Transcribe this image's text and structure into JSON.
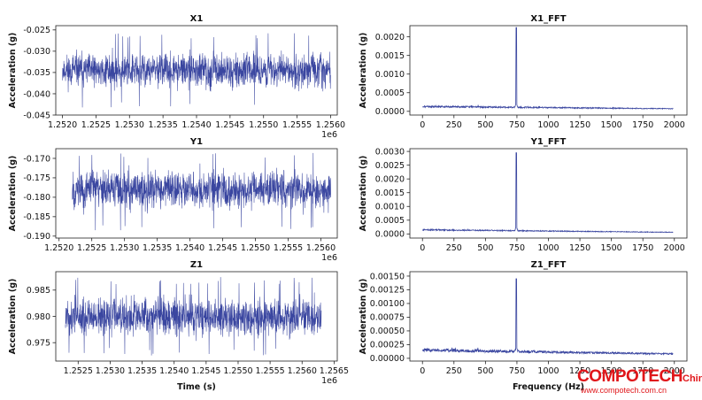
{
  "chart_data": [
    {
      "type": "line",
      "title": "X1",
      "ylabel": "Acceleration (g)",
      "xlabel": "",
      "xlim": [
        1251900,
        1256100
      ],
      "ylim": [
        -0.045,
        -0.024
      ],
      "xticks": [
        1252000,
        1252500,
        1253000,
        1253500,
        1254000,
        1254500,
        1255000,
        1255500,
        1256000
      ],
      "xtick_labels": [
        "1.2520",
        "1.2525",
        "1.2530",
        "1.2535",
        "1.2540",
        "1.2545",
        "1.2550",
        "1.2555",
        "1.2560"
      ],
      "yticks": [
        -0.045,
        -0.04,
        -0.035,
        -0.03,
        -0.025
      ],
      "ytick_labels": [
        "-0.045",
        "-0.040",
        "-0.035",
        "-0.030",
        "-0.025"
      ],
      "offset_text": "1e6",
      "signal": {
        "x_start": 1252000,
        "x_end": 1256000,
        "mean": -0.0345,
        "amplitude": 0.0045,
        "peak_min": -0.0435,
        "peak_max": -0.0255,
        "seed": 11
      },
      "color": "#3a46a0"
    },
    {
      "type": "line",
      "title": "X1_FFT",
      "ylabel": "Acceleration (g)",
      "xlabel": "",
      "xlim": [
        -100,
        2100
      ],
      "ylim": [
        -0.0001,
        0.0023
      ],
      "xticks": [
        0,
        250,
        500,
        750,
        1000,
        1250,
        1500,
        1750,
        2000
      ],
      "xtick_labels": [
        "0",
        "250",
        "500",
        "750",
        "1000",
        "1250",
        "1500",
        "1750",
        "2000"
      ],
      "yticks": [
        0,
        0.0005,
        0.001,
        0.0015,
        0.002
      ],
      "ytick_labels": [
        "0.0000",
        "0.0005",
        "0.0010",
        "0.0015",
        "0.0020"
      ],
      "spectrum": {
        "f_end": 1990,
        "base_start": 0.00013,
        "base_end": 7e-05,
        "noise": 4e-05,
        "peak_freq": 745,
        "peak_value": 0.00225,
        "seed": 21
      },
      "color": "#3a46a0"
    },
    {
      "type": "line",
      "title": "Y1",
      "ylabel": "Acceleration (g)",
      "xlabel": "",
      "xlim": [
        1251950,
        1256250
      ],
      "ylim": [
        -0.1905,
        -0.1675
      ],
      "xticks": [
        1252000,
        1252500,
        1253000,
        1253500,
        1254000,
        1254500,
        1255000,
        1255500,
        1256000
      ],
      "xtick_labels": [
        "1.2520",
        "1.2525",
        "1.2530",
        "1.2535",
        "1.2540",
        "1.2545",
        "1.2550",
        "1.2555",
        "1.2560"
      ],
      "yticks": [
        -0.19,
        -0.185,
        -0.18,
        -0.175,
        -0.17
      ],
      "ytick_labels": [
        "-0.190",
        "-0.185",
        "-0.180",
        "-0.175",
        "-0.170"
      ],
      "offset_text": "1e6",
      "signal": {
        "x_start": 1252200,
        "x_end": 1256150,
        "mean": -0.178,
        "amplitude": 0.0055,
        "peak_min": -0.1885,
        "peak_max": -0.1685,
        "seed": 33
      },
      "color": "#3a46a0"
    },
    {
      "type": "line",
      "title": "Y1_FFT",
      "ylabel": "Acceleration (g)",
      "xlabel": "",
      "xlim": [
        -100,
        2100
      ],
      "ylim": [
        -0.00015,
        0.0031
      ],
      "xticks": [
        0,
        250,
        500,
        750,
        1000,
        1250,
        1500,
        1750,
        2000
      ],
      "xtick_labels": [
        "0",
        "250",
        "500",
        "750",
        "1000",
        "1250",
        "1500",
        "1750",
        "2000"
      ],
      "yticks": [
        0,
        0.0005,
        0.001,
        0.0015,
        0.002,
        0.0025,
        0.003
      ],
      "ytick_labels": [
        "0.0000",
        "0.0005",
        "0.0010",
        "0.0015",
        "0.0020",
        "0.0025",
        "0.0030"
      ],
      "spectrum": {
        "f_end": 1990,
        "base_start": 0.00015,
        "base_end": 6e-05,
        "noise": 4e-05,
        "peak_freq": 745,
        "peak_value": 0.00295,
        "seed": 43
      },
      "color": "#3a46a0"
    },
    {
      "type": "line",
      "title": "Z1",
      "ylabel": "Acceleration (g)",
      "xlabel": "Time (s)",
      "xlim": [
        1252150,
        1256550
      ],
      "ylim": [
        0.9715,
        0.9885
      ],
      "xticks": [
        1252500,
        1253000,
        1253500,
        1254000,
        1254500,
        1255000,
        1255500,
        1256000,
        1256500
      ],
      "xtick_labels": [
        "1.2525",
        "1.2530",
        "1.2535",
        "1.2540",
        "1.2545",
        "1.2550",
        "1.2555",
        "1.2560",
        "1.2565"
      ],
      "yticks": [
        0.975,
        0.98,
        0.985
      ],
      "ytick_labels": [
        "0.975",
        "0.980",
        "0.985"
      ],
      "offset_text": "1e6",
      "signal": {
        "x_start": 1252300,
        "x_end": 1256300,
        "mean": 0.98,
        "amplitude": 0.004,
        "peak_min": 0.9725,
        "peak_max": 0.9875,
        "seed": 55
      },
      "color": "#3a46a0"
    },
    {
      "type": "line",
      "title": "Z1_FFT",
      "ylabel": "Acceleration (g)",
      "xlabel": "Frequency (Hz)",
      "xlim": [
        -100,
        2100
      ],
      "ylim": [
        -5e-05,
        0.00158
      ],
      "xticks": [
        0,
        250,
        500,
        750,
        1000,
        1250,
        1500,
        1750,
        2000
      ],
      "xtick_labels": [
        "0",
        "250",
        "500",
        "750",
        "1000",
        "1250",
        "1500",
        "1750",
        "2000"
      ],
      "yticks": [
        0,
        0.00025,
        0.0005,
        0.00075,
        0.001,
        0.00125,
        0.0015
      ],
      "ytick_labels": [
        "0.00000",
        "0.00025",
        "0.00050",
        "0.00075",
        "0.00100",
        "0.00125",
        "0.00150"
      ],
      "spectrum": {
        "f_end": 1990,
        "base_start": 0.00015,
        "base_end": 8e-05,
        "noise": 5e-05,
        "peak_freq": 745,
        "peak_value": 0.00145,
        "seed": 65
      },
      "color": "#3a46a0"
    }
  ],
  "watermark": {
    "brand": "COMPOTECH",
    "brand_suffix": "China",
    "url": "www.compotech.com.cn"
  }
}
